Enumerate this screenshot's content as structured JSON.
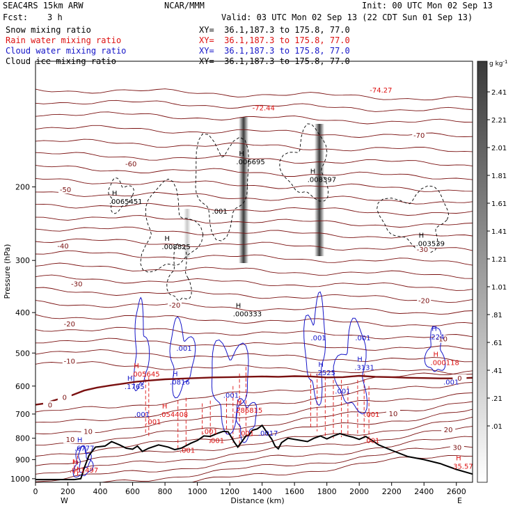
{
  "header": {
    "model": "SEAC4RS 15km ARW",
    "center": "NCAR/MMM",
    "init": "Init: 00 UTC Mon 02 Sep 13",
    "fcst_label": "Fcst:",
    "fcst_value": "3 h",
    "valid": "Valid: 03 UTC Mon 02 Sep 13 (22 CDT Sun 01 Sep 13)",
    "fields": [
      {
        "label": "Snow mixing ratio",
        "xy": "XY=  36.1,187.3 to 175.8, 77.0",
        "color": "#000000"
      },
      {
        "label": "Rain water mixing ratio",
        "xy": "XY=  36.1,187.3 to 175.8, 77.0",
        "color": "#dd1111"
      },
      {
        "label": "Cloud water mixing ratio",
        "xy": "XY=  36.1,187.3 to 175.8, 77.0",
        "color": "#1515c8"
      },
      {
        "label": "Cloud ice mixing ratio",
        "xy": "XY=  36.1,187.3 to 175.8, 77.0",
        "color": "#000000"
      }
    ]
  },
  "colors": {
    "theta_contour": "#7a1010",
    "freezing_line": "#7a1010",
    "rain": "#dd1111",
    "cloud": "#1515c8",
    "terrain": "#000000"
  },
  "chart_data": {
    "type": "cross-section",
    "xlabel": "Distance (km)",
    "ylabel": "Pressure (hPa)",
    "xlim": [
      0,
      2700
    ],
    "ylim": [
      1000,
      100
    ],
    "y_scale": "log",
    "x_ticks": [
      "0",
      "200",
      "400",
      "600",
      "800",
      "1000",
      "1200",
      "1400",
      "1600",
      "1800",
      "2000",
      "2200",
      "2400",
      "2600"
    ],
    "y_ticks": [
      "200",
      "300",
      "400",
      "500",
      "600",
      "700",
      "800",
      "900",
      "1000"
    ],
    "x_end_labels": {
      "left": "W",
      "right": "E"
    },
    "colorbar": {
      "unit": "g kg",
      "unit_exp": "-1",
      "ticks": [
        "2.41",
        "2.21",
        "2.01",
        "1.81",
        "1.61",
        "1.41",
        "1.21",
        "1.01",
        ".81",
        ".61",
        ".41",
        ".21",
        ".01"
      ]
    },
    "temperature_contours": [
      {
        "label": "-70",
        "x": 2370,
        "p": 152
      },
      {
        "label": "-60",
        "x": 590,
        "p": 178
      },
      {
        "label": "-50",
        "x": 185,
        "p": 205
      },
      {
        "label": "-40",
        "x": 170,
        "p": 280
      },
      {
        "label": "-30",
        "x": 255,
        "p": 345
      },
      {
        "label": "-30",
        "x": 2390,
        "p": 285
      },
      {
        "label": "-20",
        "x": 210,
        "p": 430
      },
      {
        "label": "-20",
        "x": 860,
        "p": 388
      },
      {
        "label": "-20",
        "x": 2400,
        "p": 378
      },
      {
        "label": "-10",
        "x": 210,
        "p": 528
      },
      {
        "label": "-10",
        "x": 2510,
        "p": 467
      },
      {
        "label": "0",
        "x": 2620,
        "p": 580
      },
      {
        "label": "0",
        "x": 180,
        "p": 645
      },
      {
        "label": "0",
        "x": 90,
        "p": 672
      },
      {
        "label": "10",
        "x": 2210,
        "p": 705
      },
      {
        "label": "10",
        "x": 325,
        "p": 778
      },
      {
        "label": "10",
        "x": 215,
        "p": 813
      },
      {
        "label": "20",
        "x": 2550,
        "p": 770
      },
      {
        "label": "30",
        "x": 2605,
        "p": 850
      }
    ],
    "extrema": [
      {
        "mark": "",
        "value": "-72.44",
        "x": 1340,
        "p": 130,
        "color": "#dd1111"
      },
      {
        "mark": "",
        "value": "-74.27",
        "x": 2065,
        "p": 118,
        "color": "#dd1111"
      },
      {
        "mark": "H",
        "value": ".006695",
        "x": 1240,
        "p": 175,
        "color": "#000000"
      },
      {
        "mark": "H",
        "value": ".008397",
        "x": 1680,
        "p": 193,
        "color": "#000000"
      },
      {
        "mark": "H",
        "value": ".0065451",
        "x": 455,
        "p": 218,
        "color": "#000000"
      },
      {
        "mark": "",
        "value": ".001",
        "x": 1090,
        "p": 230,
        "color": "#000000"
      },
      {
        "mark": "H",
        "value": ".008825",
        "x": 780,
        "p": 280,
        "color": "#000000"
      },
      {
        "mark": "H",
        "value": ".003539",
        "x": 2350,
        "p": 275,
        "color": "#000000"
      },
      {
        "mark": "H",
        "value": ".000333",
        "x": 1220,
        "p": 405,
        "color": "#000000"
      },
      {
        "mark": "H",
        "value": ".224",
        "x": 2430,
        "p": 460,
        "color": "#1515c8"
      },
      {
        "mark": "",
        "value": ".001",
        "x": 1700,
        "p": 463,
        "color": "#1515c8"
      },
      {
        "mark": "",
        "value": ".001",
        "x": 1975,
        "p": 463,
        "color": "#1515c8"
      },
      {
        "mark": "",
        "value": ".001",
        "x": 870,
        "p": 490,
        "color": "#1515c8"
      },
      {
        "mark": "H",
        "value": ".000118",
        "x": 2440,
        "p": 530,
        "color": "#dd1111"
      },
      {
        "mark": "H",
        "value": ".005645",
        "x": 590,
        "p": 565,
        "color": "#dd1111"
      },
      {
        "mark": "H",
        "value": ".3131",
        "x": 1970,
        "p": 545,
        "color": "#1515c8"
      },
      {
        "mark": "H",
        "value": ".2525",
        "x": 1730,
        "p": 560,
        "color": "#1515c8"
      },
      {
        "mark": "H",
        "value": ".0816",
        "x": 830,
        "p": 590,
        "color": "#1515c8"
      },
      {
        "mark": "H",
        "value": ".1765",
        "x": 550,
        "p": 605,
        "color": "#1515c8"
      },
      {
        "mark": "",
        "value": ".001",
        "x": 2520,
        "p": 590,
        "color": "#1515c8"
      },
      {
        "mark": "",
        "value": ".001",
        "x": 1850,
        "p": 620,
        "color": "#1515c8"
      },
      {
        "mark": "",
        "value": ".001",
        "x": 1160,
        "p": 635,
        "color": "#1515c8"
      },
      {
        "mark": "",
        "value": ".001",
        "x": 610,
        "p": 705,
        "color": "#1515c8"
      },
      {
        "mark": "",
        "value": ".001",
        "x": 680,
        "p": 735,
        "color": "#dd1111"
      },
      {
        "mark": "H",
        "value": ".286815",
        "x": 1225,
        "p": 690,
        "color": "#dd1111"
      },
      {
        "mark": "H",
        "value": ".054408",
        "x": 765,
        "p": 705,
        "color": "#dd1111"
      },
      {
        "mark": "",
        "value": ".001",
        "x": 2030,
        "p": 705,
        "color": "#dd1111"
      },
      {
        "mark": "",
        "value": ".001",
        "x": 1030,
        "p": 775,
        "color": "#dd1111"
      },
      {
        "mark": "",
        "value": ".001",
        "x": 1255,
        "p": 782,
        "color": "#dd1111"
      },
      {
        "mark": "",
        "value": ".0017",
        "x": 1375,
        "p": 782,
        "color": "#1515c8"
      },
      {
        "mark": "",
        "value": ".001",
        "x": 1070,
        "p": 815,
        "color": "#dd1111"
      },
      {
        "mark": "",
        "value": ".001",
        "x": 2030,
        "p": 815,
        "color": "#dd1111"
      },
      {
        "mark": "",
        "value": ".001",
        "x": 890,
        "p": 860,
        "color": "#dd1111"
      },
      {
        "mark": "H",
        "value": ".6777",
        "x": 240,
        "p": 850,
        "color": "#1515c8"
      },
      {
        "mark": "H",
        "value": ".001497",
        "x": 210,
        "p": 960,
        "color": "#dd1111"
      },
      {
        "mark": "H",
        "value": "35.57",
        "x": 2580,
        "p": 940,
        "color": "#dd1111"
      }
    ]
  }
}
